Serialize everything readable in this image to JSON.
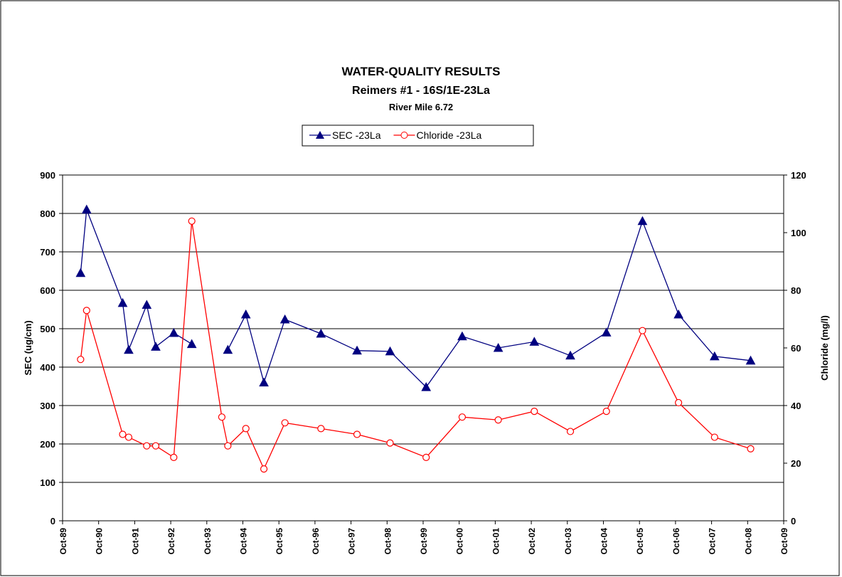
{
  "chart_data": {
    "type": "line",
    "title": "WATER-QUALITY RESULTS",
    "subtitle": [
      "Reimers #1 - 16S/1E-23La",
      "River Mile 6.72"
    ],
    "x": [
      "1990-04",
      "1990-06",
      "1991-06",
      "1991-08",
      "1992-02",
      "1992-05",
      "1992-11",
      "1993-05",
      "1994-03",
      "1994-05",
      "1994-11",
      "1995-05",
      "1995-12",
      "1996-12",
      "1997-12",
      "1998-11",
      "1999-11",
      "2000-11",
      "2001-11",
      "2002-11",
      "2003-11",
      "2004-11",
      "2005-11",
      "2006-11",
      "2007-11",
      "2008-11"
    ],
    "xlim": [
      "1989-10",
      "2009-10"
    ],
    "xticks": [
      {
        "value": "1989-10",
        "label": "Oct-89"
      },
      {
        "value": "1990-10",
        "label": "Oct-90"
      },
      {
        "value": "1991-10",
        "label": "Oct-91"
      },
      {
        "value": "1992-10",
        "label": "Oct-92"
      },
      {
        "value": "1993-10",
        "label": "Oct-93"
      },
      {
        "value": "1994-10",
        "label": "Oct-94"
      },
      {
        "value": "1995-10",
        "label": "Oct-95"
      },
      {
        "value": "1996-10",
        "label": "Oct-96"
      },
      {
        "value": "1997-10",
        "label": "Oct-97"
      },
      {
        "value": "1998-10",
        "label": "Oct-98"
      },
      {
        "value": "1999-10",
        "label": "Oct-99"
      },
      {
        "value": "2000-10",
        "label": "Oct-00"
      },
      {
        "value": "2001-10",
        "label": "Oct-01"
      },
      {
        "value": "2002-10",
        "label": "Oct-02"
      },
      {
        "value": "2003-10",
        "label": "Oct-03"
      },
      {
        "value": "2004-10",
        "label": "Oct-04"
      },
      {
        "value": "2005-10",
        "label": "Oct-05"
      },
      {
        "value": "2006-10",
        "label": "Oct-06"
      },
      {
        "value": "2007-10",
        "label": "Oct-07"
      },
      {
        "value": "2008-10",
        "label": "Oct-08"
      },
      {
        "value": "2009-10",
        "label": "Oct-09"
      }
    ],
    "ylabel": "SEC (ug/cm)",
    "y2label": "Chloride (mg/l)",
    "ylim": [
      0,
      900
    ],
    "yticks": [
      0,
      100,
      200,
      300,
      400,
      500,
      600,
      700,
      800,
      900
    ],
    "y2lim": [
      0,
      120
    ],
    "y2ticks": [
      0,
      20,
      40,
      60,
      80,
      100,
      120
    ],
    "grid": true,
    "legend": "top",
    "series": [
      {
        "name": "SEC -23La",
        "color": "#000080",
        "marker": "triangle",
        "values": [
          645,
          810,
          567,
          445,
          562,
          453,
          489,
          460,
          null,
          445,
          537,
          360,
          524,
          487,
          443,
          441,
          348,
          480,
          450,
          466,
          430,
          490,
          780,
          537,
          428,
          417
        ]
      },
      {
        "name": "Chloride -23La",
        "color": "#ff0000",
        "marker": "circle",
        "axis": "y2",
        "values": [
          56,
          73,
          30,
          29,
          26,
          26,
          22,
          104,
          36,
          26,
          32,
          18,
          34,
          32,
          30,
          27,
          22,
          36,
          35,
          38,
          31,
          38,
          66,
          41,
          29,
          25
        ]
      }
    ]
  }
}
